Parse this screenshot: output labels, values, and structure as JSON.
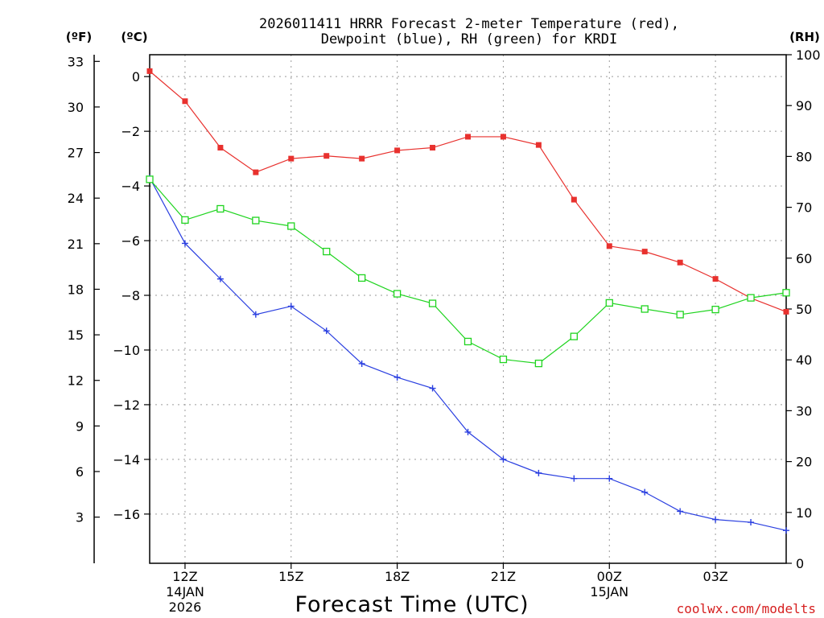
{
  "chart_data": {
    "type": "line",
    "title_line1": "2026011411 HRRR Forecast 2-meter Temperature (red),",
    "title_line2": "Dewpoint (blue), RH (green) for KRDI",
    "xlabel": "Forecast Time (UTC)",
    "credit": "coolwx.com/modelts",
    "units": {
      "fahrenheit": "(ºF)",
      "celsius": "(ºC)",
      "rh": "(RH)"
    },
    "celsius_axis": {
      "range": [
        -17.8,
        0.8
      ],
      "ticks": [
        "0",
        "−2",
        "−4",
        "−6",
        "−8",
        "−10",
        "−12",
        "−14",
        "−16"
      ],
      "tick_values": [
        0,
        -2,
        -4,
        -6,
        -8,
        -10,
        -12,
        -14,
        -16
      ]
    },
    "fahrenheit_axis": {
      "ticks": [
        "33",
        "30",
        "27",
        "24",
        "21",
        "18",
        "15",
        "12",
        "9",
        "6",
        "3"
      ],
      "tick_values": [
        33,
        30,
        27,
        24,
        21,
        18,
        15,
        12,
        9,
        6,
        3
      ]
    },
    "rh_axis": {
      "range": [
        0,
        100
      ],
      "ticks": [
        "100",
        "90",
        "80",
        "70",
        "60",
        "50",
        "40",
        "30",
        "20",
        "10",
        "0"
      ],
      "tick_values": [
        100,
        90,
        80,
        70,
        60,
        50,
        40,
        30,
        20,
        10,
        0
      ]
    },
    "x_range": [
      11,
      29
    ],
    "x_ticks": [
      {
        "hour": 12,
        "label": "12Z",
        "sub1": "14JAN",
        "sub2": "2026"
      },
      {
        "hour": 15,
        "label": "15Z",
        "sub1": "",
        "sub2": ""
      },
      {
        "hour": 18,
        "label": "18Z",
        "sub1": "",
        "sub2": ""
      },
      {
        "hour": 21,
        "label": "21Z",
        "sub1": "",
        "sub2": ""
      },
      {
        "hour": 24,
        "label": "00Z",
        "sub1": "15JAN",
        "sub2": ""
      },
      {
        "hour": 27,
        "label": "03Z",
        "sub1": "",
        "sub2": ""
      }
    ],
    "x": [
      11,
      12,
      13,
      14,
      15,
      16,
      17,
      18,
      19,
      20,
      21,
      22,
      23,
      24,
      25,
      26,
      27,
      28,
      29
    ],
    "series": [
      {
        "name": "Temperature",
        "unit": "C",
        "color": "#e8312e",
        "marker": "filled-square",
        "values": [
          0.2,
          -0.9,
          -2.6,
          -3.5,
          -3.0,
          -2.9,
          -3.0,
          -2.7,
          -2.6,
          -2.2,
          -2.2,
          -2.5,
          -4.5,
          -6.2,
          -6.4,
          -6.8,
          -7.4,
          -8.1,
          -8.6
        ]
      },
      {
        "name": "Dewpoint",
        "unit": "C",
        "color": "#2a3fe0",
        "marker": "plus",
        "values": [
          -3.7,
          -6.1,
          -7.4,
          -8.7,
          -8.4,
          -9.3,
          -10.5,
          -11.0,
          -11.4,
          -13.0,
          -14.0,
          -14.5,
          -14.7,
          -14.7,
          -15.2,
          -15.9,
          -16.2,
          -16.3,
          -16.6
        ]
      },
      {
        "name": "RH",
        "unit": "%",
        "color": "#1fd41f",
        "marker": "open-square",
        "values": [
          75.5,
          67.5,
          69.7,
          67.4,
          66.3,
          61.3,
          56.1,
          53.0,
          51.1,
          43.6,
          40.1,
          39.3,
          44.6,
          51.2,
          50.0,
          48.9,
          49.9,
          52.2,
          53.2
        ]
      }
    ]
  }
}
